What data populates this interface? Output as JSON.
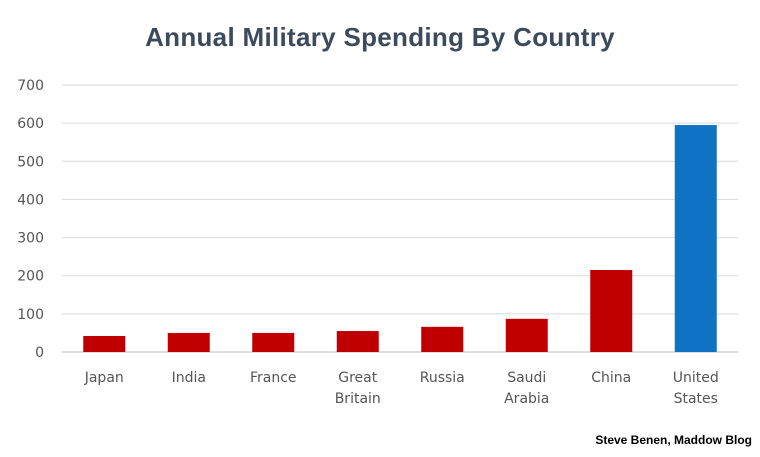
{
  "chart_data": {
    "type": "bar",
    "title": "Annual Military Spending By Country",
    "xlabel": "",
    "ylabel": "",
    "ylim": [
      0,
      700
    ],
    "yticks": [
      0,
      100,
      200,
      300,
      400,
      500,
      600,
      700
    ],
    "grid": true,
    "categories": [
      [
        "Japan"
      ],
      [
        "India"
      ],
      [
        "France"
      ],
      [
        "Great",
        "Britain"
      ],
      [
        "Russia"
      ],
      [
        "Saudi",
        "Arabia"
      ],
      [
        "China"
      ],
      [
        "United",
        "States"
      ]
    ],
    "values": [
      42,
      50,
      50,
      55,
      66,
      87,
      215,
      595
    ],
    "colors": [
      "#c00000",
      "#c00000",
      "#c00000",
      "#c00000",
      "#c00000",
      "#c00000",
      "#c00000",
      "#0f72c2"
    ]
  },
  "credit": "Steve Benen, Maddow Blog",
  "style": {
    "gridColor": "#d9d9d9",
    "axisColor": "#bfbfbf"
  }
}
